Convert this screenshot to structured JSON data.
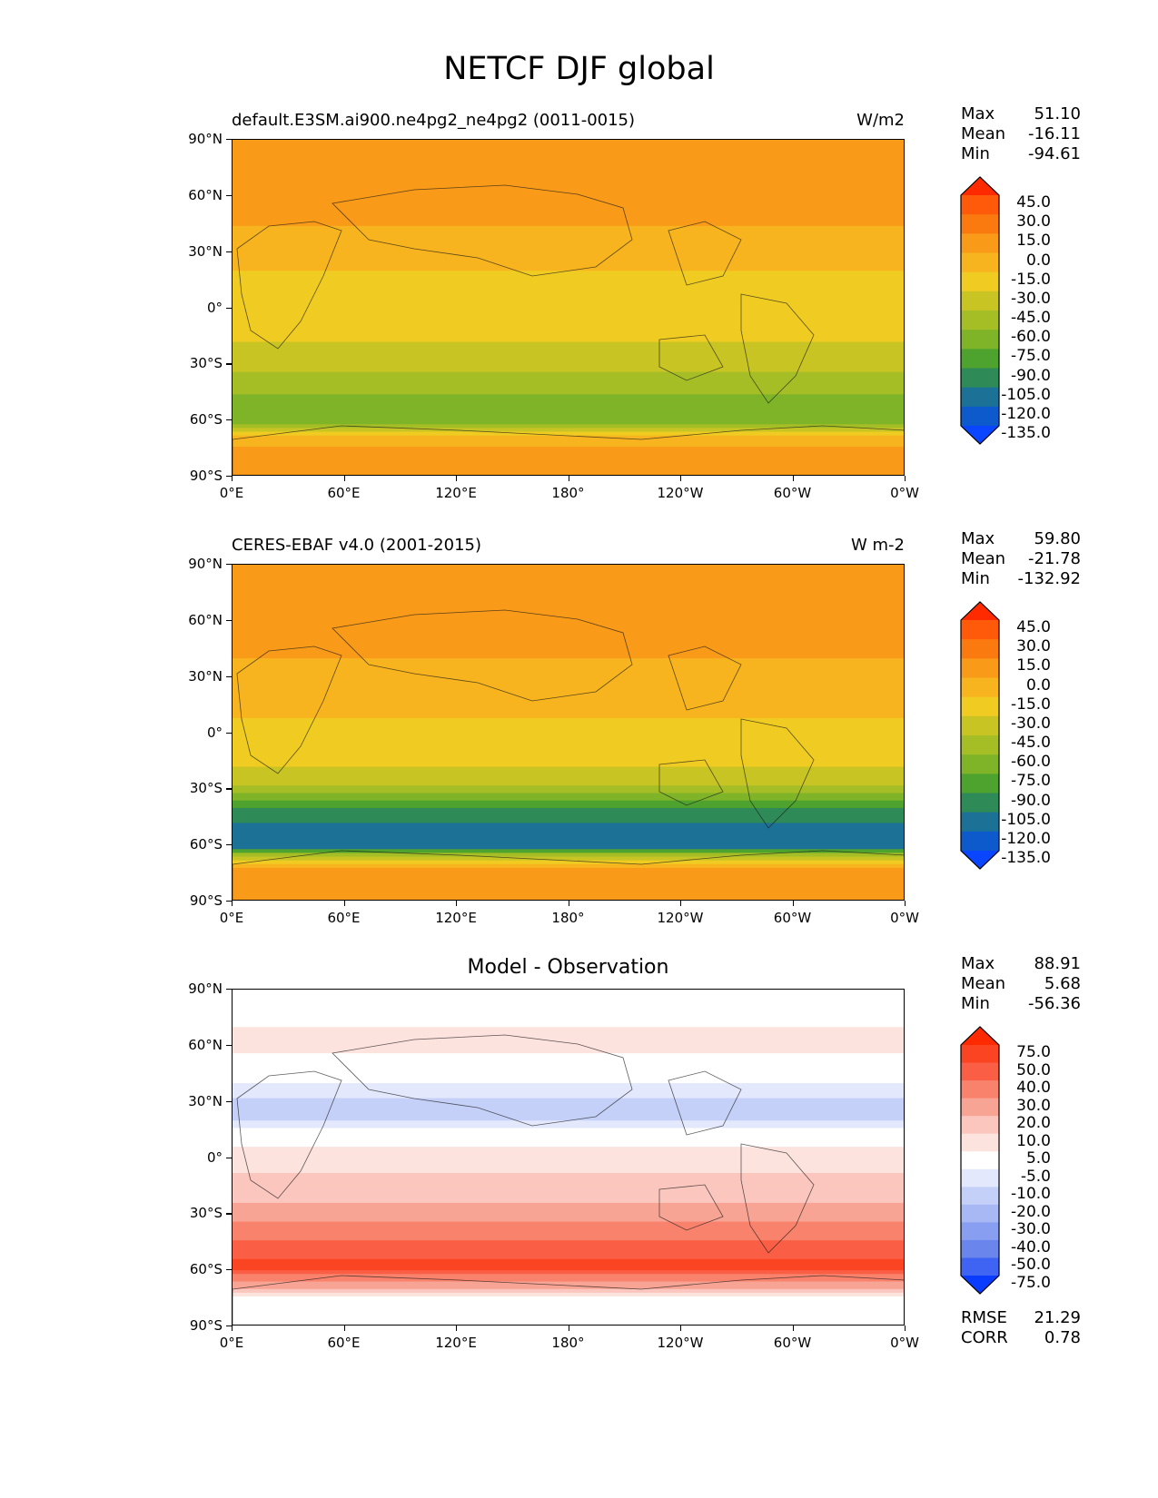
{
  "figure_title": "NETCF DJF global",
  "chart_data": [
    {
      "type": "heatmap",
      "title_left": "default.E3SM.ai900.ne4pg2_ne4pg2 (0011-0015)",
      "title_right": "W/m2",
      "title_center": "",
      "x_tick_labels": [
        "0°E",
        "60°E",
        "120°E",
        "180°",
        "120°W",
        "60°W",
        "0°W"
      ],
      "y_tick_labels": [
        "90°N",
        "60°N",
        "30°N",
        "0°",
        "30°S",
        "60°S",
        "90°S"
      ],
      "xlim": [
        0,
        360
      ],
      "ylim": [
        -90,
        90
      ],
      "stats": [
        {
          "label": "Max",
          "value": "51.10"
        },
        {
          "label": "Mean",
          "value": "-16.11"
        },
        {
          "label": "Min",
          "value": "-94.61"
        }
      ],
      "colorbar": {
        "levels": [
          "45.0",
          "30.0",
          "15.0",
          "0.0",
          "-15.0",
          "-30.0",
          "-45.0",
          "-60.0",
          "-75.0",
          "-90.0",
          "-105.0",
          "-120.0",
          "-135.0"
        ],
        "colors": [
          "#ff2a00",
          "#ff5a0a",
          "#fa7a10",
          "#f99a18",
          "#f8b41e",
          "#f0cc22",
          "#c8c424",
          "#a6be26",
          "#7fb428",
          "#4ea22e",
          "#2e8a56",
          "#1c7296",
          "#0c5acc",
          "#0a46ff"
        ]
      },
      "field": {
        "latitude_profile": [
          {
            "lat": 85,
            "value": 5
          },
          {
            "lat": 70,
            "value": 10
          },
          {
            "lat": 60,
            "value": 5
          },
          {
            "lat": 45,
            "value": 0
          },
          {
            "lat": 30,
            "value": -10
          },
          {
            "lat": 15,
            "value": -18
          },
          {
            "lat": 0,
            "value": -22
          },
          {
            "lat": -15,
            "value": -28
          },
          {
            "lat": -30,
            "value": -38
          },
          {
            "lat": -45,
            "value": -60
          },
          {
            "lat": -55,
            "value": -70
          },
          {
            "lat": -62,
            "value": -60
          },
          {
            "lat": -68,
            "value": -10
          },
          {
            "lat": -78,
            "value": 5
          },
          {
            "lat": -90,
            "value": 0
          }
        ]
      },
      "stats_footer": []
    },
    {
      "type": "heatmap",
      "title_left": "CERES-EBAF v4.0 (2001-2015)",
      "title_right": "W m-2",
      "title_center": "",
      "x_tick_labels": [
        "0°E",
        "60°E",
        "120°E",
        "180°",
        "120°W",
        "60°W",
        "0°W"
      ],
      "y_tick_labels": [
        "90°N",
        "60°N",
        "30°N",
        "0°",
        "30°S",
        "60°S",
        "90°S"
      ],
      "xlim": [
        0,
        360
      ],
      "ylim": [
        -90,
        90
      ],
      "stats": [
        {
          "label": "Max",
          "value": "59.80"
        },
        {
          "label": "Mean",
          "value": "-21.78"
        },
        {
          "label": "Min",
          "value": "-132.92"
        }
      ],
      "colorbar": {
        "levels": [
          "45.0",
          "30.0",
          "15.0",
          "0.0",
          "-15.0",
          "-30.0",
          "-45.0",
          "-60.0",
          "-75.0",
          "-90.0",
          "-105.0",
          "-120.0",
          "-135.0"
        ],
        "colors": [
          "#ff2a00",
          "#ff5a0a",
          "#fa7a10",
          "#f99a18",
          "#f8b41e",
          "#f0cc22",
          "#c8c424",
          "#a6be26",
          "#7fb428",
          "#4ea22e",
          "#2e8a56",
          "#1c7296",
          "#0c5acc",
          "#0a46ff"
        ]
      },
      "field": {
        "latitude_profile": [
          {
            "lat": 85,
            "value": 10
          },
          {
            "lat": 70,
            "value": 10
          },
          {
            "lat": 60,
            "value": 5
          },
          {
            "lat": 45,
            "value": 3
          },
          {
            "lat": 30,
            "value": -5
          },
          {
            "lat": 15,
            "value": -12
          },
          {
            "lat": 0,
            "value": -18
          },
          {
            "lat": -15,
            "value": -25
          },
          {
            "lat": -30,
            "value": -50
          },
          {
            "lat": -42,
            "value": -95
          },
          {
            "lat": -52,
            "value": -115
          },
          {
            "lat": -60,
            "value": -120
          },
          {
            "lat": -66,
            "value": -40
          },
          {
            "lat": -72,
            "value": 5
          },
          {
            "lat": -90,
            "value": 0
          }
        ]
      },
      "stats_footer": []
    },
    {
      "type": "heatmap",
      "title_left": "",
      "title_right": "",
      "title_center": "Model - Observation",
      "x_tick_labels": [
        "0°E",
        "60°E",
        "120°E",
        "180°",
        "120°W",
        "60°W",
        "0°W"
      ],
      "y_tick_labels": [
        "90°N",
        "60°N",
        "30°N",
        "0°",
        "30°S",
        "60°S",
        "90°S"
      ],
      "xlim": [
        0,
        360
      ],
      "ylim": [
        -90,
        90
      ],
      "stats": [
        {
          "label": "Max",
          "value": "88.91"
        },
        {
          "label": "Mean",
          "value": "5.68"
        },
        {
          "label": "Min",
          "value": "-56.36"
        }
      ],
      "colorbar": {
        "levels": [
          "75.0",
          "50.0",
          "40.0",
          "30.0",
          "20.0",
          "10.0",
          "5.0",
          "-5.0",
          "-10.0",
          "-20.0",
          "-30.0",
          "-40.0",
          "-50.0",
          "-75.0"
        ],
        "colors": [
          "#ff2a00",
          "#fb4422",
          "#fa5f46",
          "#f8826c",
          "#f8a494",
          "#fbc6bd",
          "#fde3de",
          "#ffffff",
          "#e3e8fc",
          "#c5d0f8",
          "#a7b8f4",
          "#889ff1",
          "#6a86ec",
          "#3f64f4",
          "#0a3cff"
        ]
      },
      "field": {
        "latitude_profile": [
          {
            "lat": 85,
            "value": 0
          },
          {
            "lat": 60,
            "value": 8
          },
          {
            "lat": 40,
            "value": -5
          },
          {
            "lat": 25,
            "value": -15
          },
          {
            "lat": 10,
            "value": 2
          },
          {
            "lat": 0,
            "value": 8
          },
          {
            "lat": -15,
            "value": 12
          },
          {
            "lat": -30,
            "value": 25
          },
          {
            "lat": -45,
            "value": 40
          },
          {
            "lat": -58,
            "value": 55
          },
          {
            "lat": -66,
            "value": 30
          },
          {
            "lat": -75,
            "value": 0
          },
          {
            "lat": -90,
            "value": 0
          }
        ]
      },
      "stats_footer": [
        {
          "label": "RMSE",
          "value": "21.29"
        },
        {
          "label": "CORR",
          "value": "0.78"
        }
      ]
    }
  ]
}
